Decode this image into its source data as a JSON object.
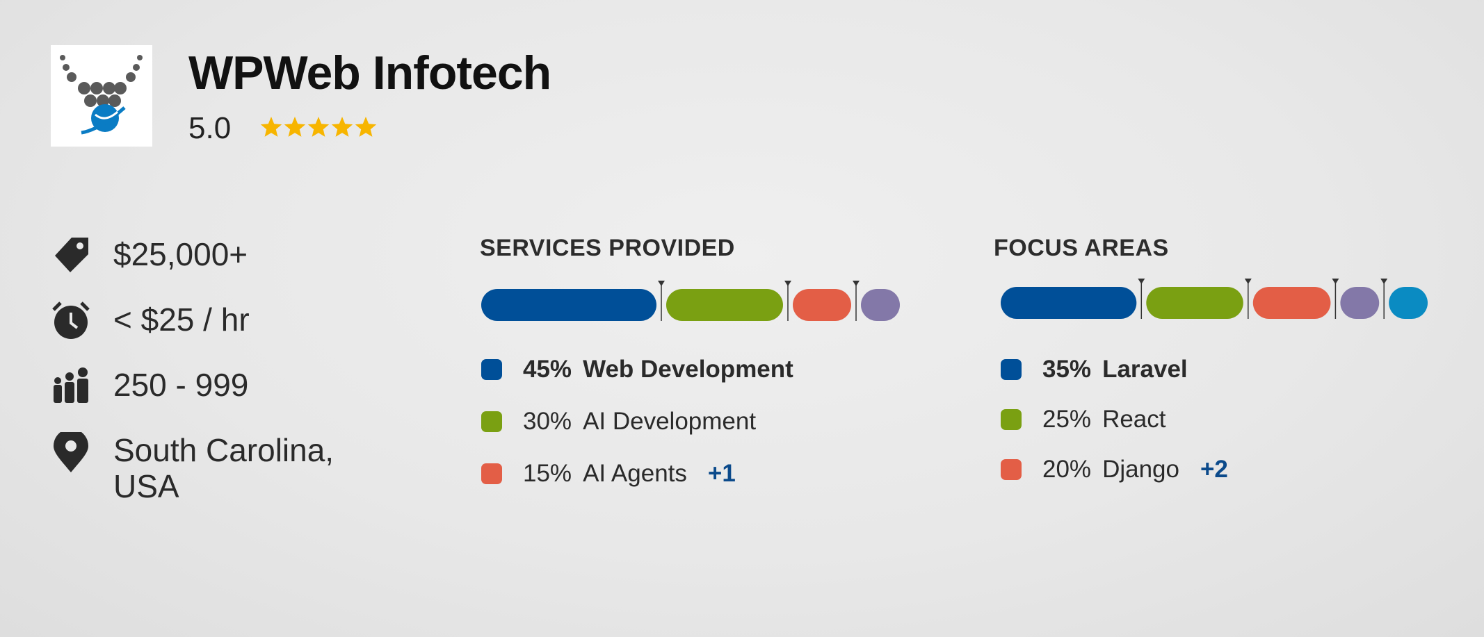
{
  "company": {
    "name": "WPWeb Infotech",
    "rating": {
      "value": 5,
      "label": "5.0"
    }
  },
  "stats": [
    "$25,000+",
    "< $25 / hr",
    "250 - 999",
    "South Carolina, USA"
  ],
  "services": {
    "title": "SERVICES PROVIDED",
    "segments": [
      {
        "label": "Web Development",
        "value": 45,
        "value_label": "45%",
        "color": "#004f98"
      },
      {
        "label": "AI Development",
        "value": 30,
        "value_label": "30%",
        "color": "#7aa012"
      },
      {
        "label": "AI Agents",
        "value": 15,
        "value_label": "15%",
        "color": "#e35e46"
      },
      {
        "value": 10,
        "color": "#8378a8"
      }
    ],
    "more": "+1"
  },
  "focus": {
    "title": "FOCUS AREAS",
    "segments": [
      {
        "label": "Laravel",
        "value": 35,
        "value_label": "35%",
        "color": "#004f98"
      },
      {
        "label": "React",
        "value": 25,
        "value_label": "25%",
        "color": "#7aa012"
      },
      {
        "label": "Django",
        "value": 20,
        "value_label": "20%",
        "color": "#e35e46"
      },
      {
        "value": 10,
        "color": "#8378a8"
      },
      {
        "value": 10,
        "color": "#0a8bc2"
      }
    ],
    "more": "+2"
  }
}
